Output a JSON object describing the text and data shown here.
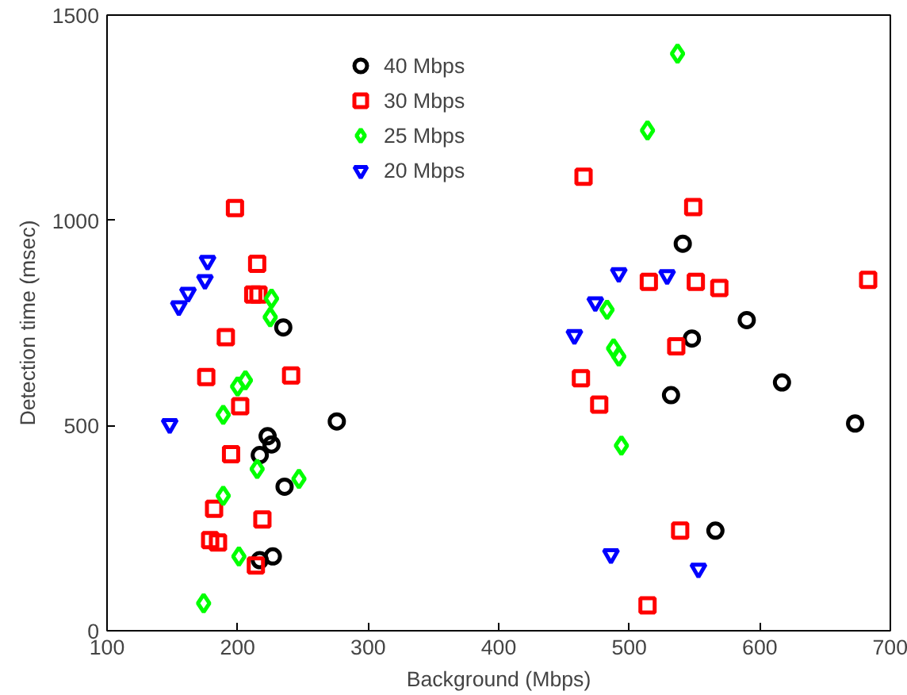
{
  "chart_data": {
    "type": "scatter",
    "xlabel": "Background (Mbps)",
    "ylabel": "Detection time (msec)",
    "xlim": [
      100,
      700
    ],
    "ylim": [
      0,
      1500
    ],
    "xticks": [
      100,
      200,
      300,
      400,
      500,
      600,
      700
    ],
    "yticks": [
      0,
      500,
      1000,
      1500
    ],
    "grid": false,
    "legend": "top",
    "series": [
      {
        "name": "40 Mbps",
        "color": "#000000",
        "marker": "circle",
        "x": [
          235,
          276,
          223,
          226,
          217,
          236,
          217,
          227,
          541,
          590,
          548,
          617,
          532,
          673,
          566
        ],
        "values": [
          739,
          510,
          474,
          454,
          428,
          351,
          172,
          181,
          943,
          757,
          712,
          605,
          574,
          505,
          244
        ]
      },
      {
        "name": "30 Mbps",
        "color": "#ff0000",
        "marker": "square",
        "x": [
          198,
          215,
          212,
          216,
          191,
          176,
          241,
          202,
          195,
          182,
          219,
          179,
          185,
          214,
          465,
          549,
          515,
          551,
          569,
          683,
          536,
          463,
          477,
          539,
          514
        ],
        "values": [
          1030,
          894,
          819,
          819,
          715,
          618,
          622,
          547,
          430,
          297,
          271,
          221,
          215,
          159,
          1106,
          1032,
          850,
          850,
          835,
          855,
          693,
          615,
          551,
          244,
          62
        ]
      },
      {
        "name": "25 Mbps",
        "color": "#00ff00",
        "marker": "diamond",
        "x": [
          226,
          225,
          200,
          206,
          189,
          215,
          247,
          189,
          201,
          174,
          537,
          514,
          483,
          488,
          492,
          494
        ],
        "values": [
          809,
          764,
          595,
          610,
          526,
          394,
          370,
          329,
          181,
          67,
          1406,
          1219,
          782,
          688,
          668,
          451
        ]
      },
      {
        "name": "20 Mbps",
        "color": "#0000ff",
        "marker": "triangle_down",
        "x": [
          177,
          175,
          162,
          155,
          148,
          492,
          529,
          474,
          458,
          486,
          553
        ],
        "values": [
          901,
          854,
          823,
          790,
          503,
          871,
          866,
          800,
          720,
          186,
          151
        ]
      }
    ]
  }
}
